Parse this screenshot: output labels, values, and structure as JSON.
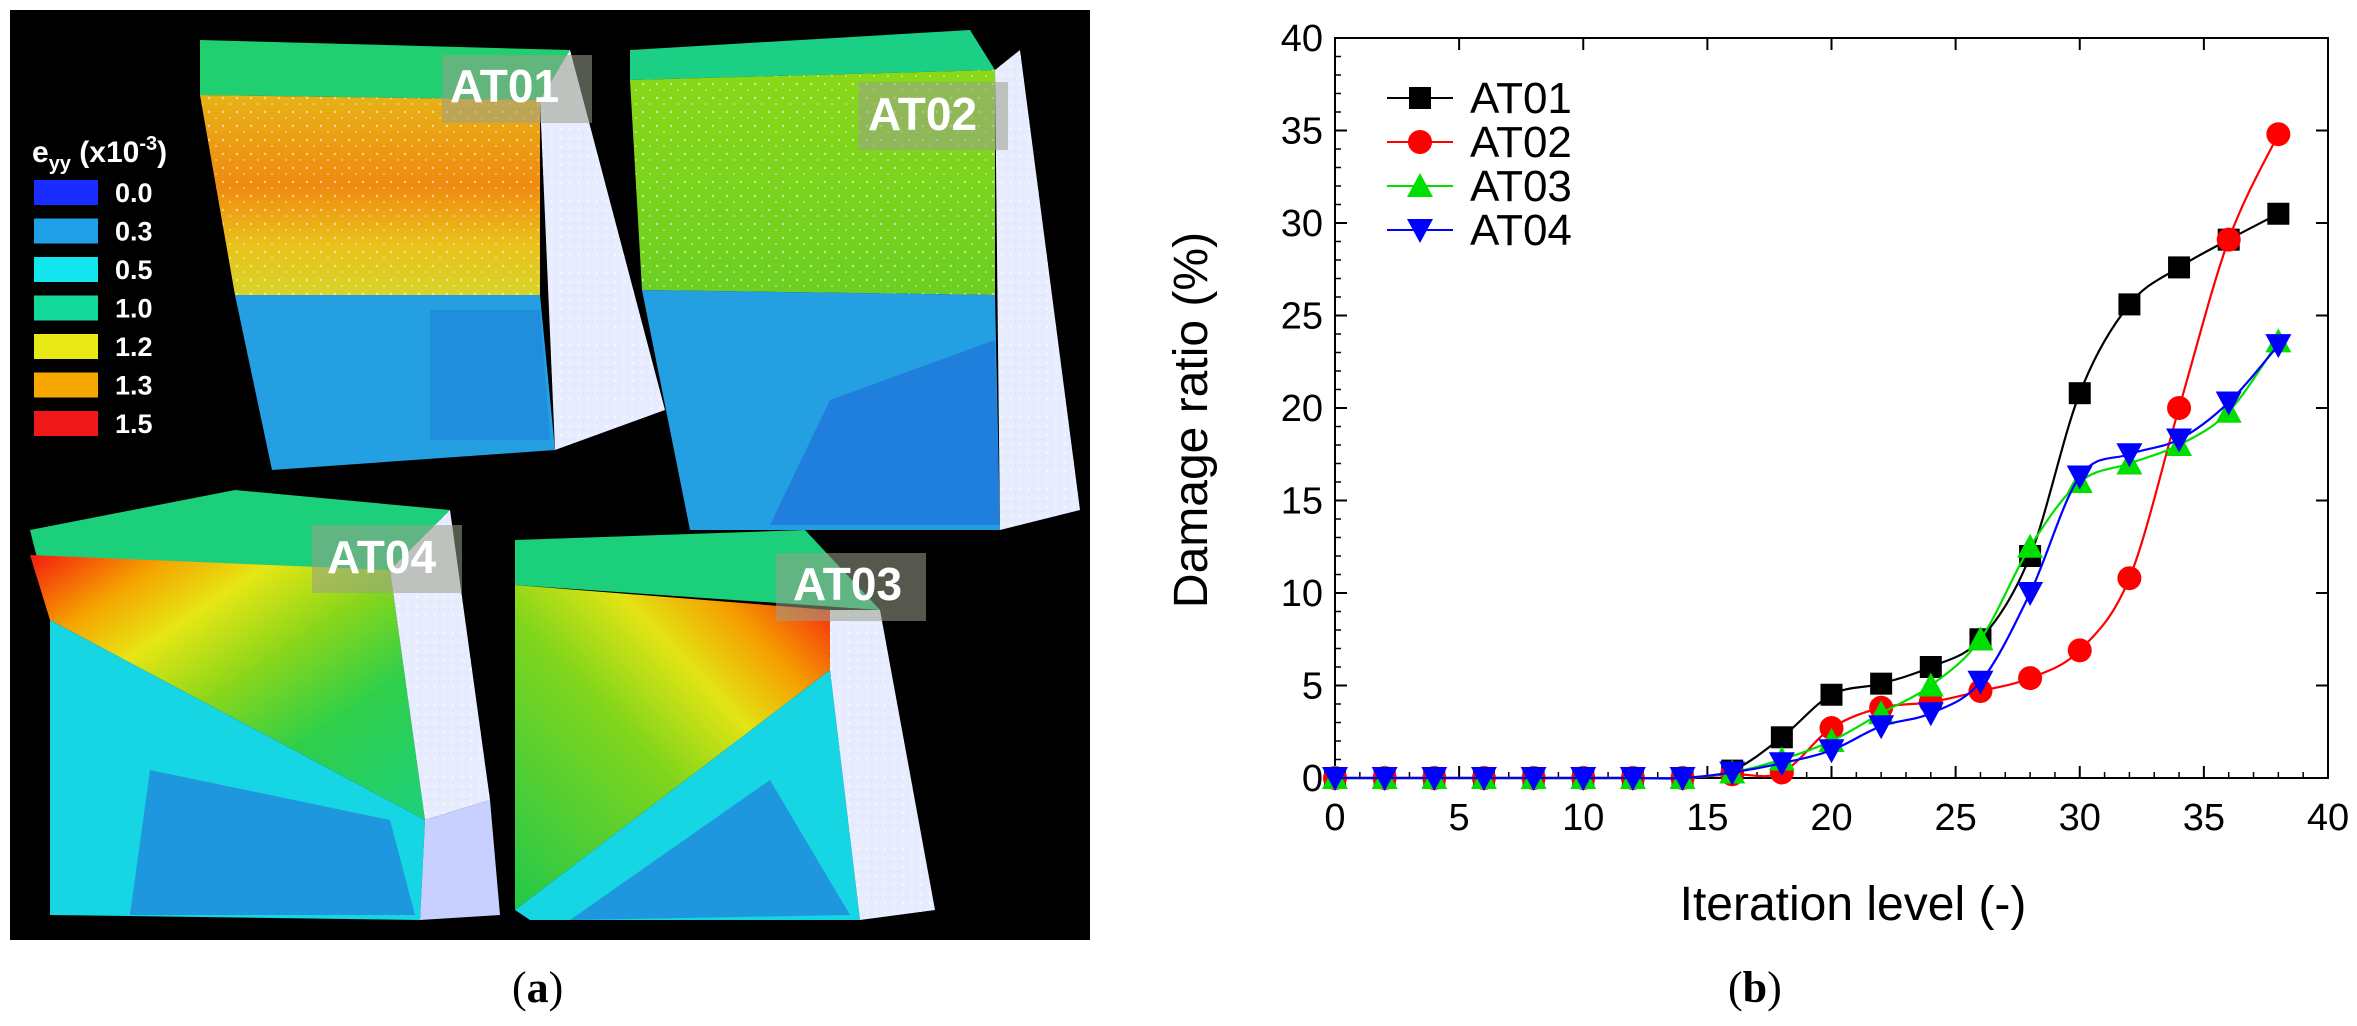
{
  "panel_a": {
    "legend_symbol": "e",
    "legend_sub": "yy",
    "legend_unit": " (x10",
    "legend_exp": "-3",
    "legend_close": ")",
    "legend_entries": [
      {
        "label": "0.0",
        "color": "#1a2cff"
      },
      {
        "label": "0.3",
        "color": "#1e9fe6"
      },
      {
        "label": "0.5",
        "color": "#11e6ee"
      },
      {
        "label": "1.0",
        "color": "#12d89a"
      },
      {
        "label": "1.2",
        "color": "#e9e915"
      },
      {
        "label": "1.3",
        "color": "#f6a800"
      },
      {
        "label": "1.5",
        "color": "#f01818"
      }
    ],
    "specimen_labels": [
      "AT01",
      "AT02",
      "AT04",
      "AT03"
    ]
  },
  "chart_data": {
    "type": "line",
    "xlabel": "Iteration level (-)",
    "ylabel": "Damage ratio (%)",
    "xlim": [
      0,
      40
    ],
    "ylim": [
      0,
      40
    ],
    "xticks": [
      0,
      5,
      10,
      15,
      20,
      25,
      30,
      35,
      40
    ],
    "yticks": [
      0,
      5,
      10,
      15,
      20,
      25,
      30,
      35,
      40
    ],
    "legend_position": "top-left",
    "x": [
      0,
      2,
      4,
      6,
      8,
      10,
      12,
      14,
      16,
      18,
      20,
      22,
      24,
      26,
      28,
      30,
      32,
      34,
      36,
      38
    ],
    "series": [
      {
        "name": "AT01",
        "color": "#000000",
        "marker": "square",
        "values": [
          0,
          0,
          0,
          0,
          0,
          0,
          0,
          0,
          0.4,
          2.2,
          4.5,
          5.1,
          6.0,
          7.5,
          12,
          20.8,
          25.6,
          27.6,
          29.1,
          30.5
        ]
      },
      {
        "name": "AT02",
        "color": "#ff0000",
        "marker": "circle",
        "values": [
          0,
          0,
          0,
          0,
          0,
          0,
          0,
          0,
          0.2,
          0.3,
          2.7,
          3.8,
          4.1,
          4.7,
          5.4,
          6.9,
          10.8,
          20,
          29.1,
          34.8
        ]
      },
      {
        "name": "AT03",
        "color": "#00e000",
        "marker": "triangle-up",
        "values": [
          0,
          0,
          0,
          0,
          0,
          0,
          0,
          0,
          0.3,
          1.0,
          2.0,
          3.5,
          5.0,
          7.5,
          12.5,
          16,
          17,
          18,
          19.8,
          23.6
        ]
      },
      {
        "name": "AT04",
        "color": "#0000ff",
        "marker": "triangle-down",
        "values": [
          0,
          0,
          0,
          0,
          0,
          0,
          0,
          0,
          0.3,
          0.8,
          1.5,
          2.8,
          3.5,
          5.2,
          10,
          16.3,
          17.5,
          18.3,
          20.3,
          23.4
        ]
      }
    ]
  },
  "captions": {
    "a_open": "(",
    "a_letter": "a",
    "a_close": ")",
    "b_open": "(",
    "b_letter": "b",
    "b_close": ")"
  }
}
